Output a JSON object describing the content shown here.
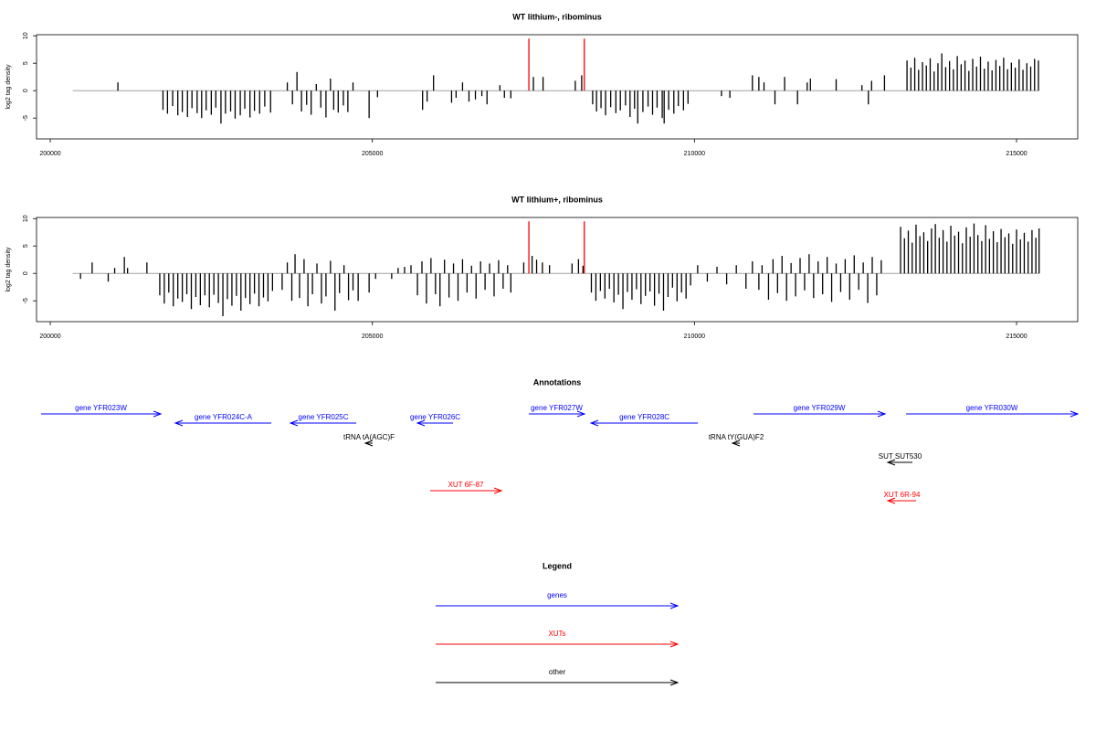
{
  "chart_data": [
    {
      "type": "bar",
      "title": "WT lithium-, ribominus",
      "ylabel": "log2 tag density",
      "xlim": [
        199787,
        215950
      ],
      "ylim": [
        -8.8,
        10.2
      ],
      "xticks": [
        200000,
        205000,
        210000,
        215000
      ],
      "yticks": [
        -5,
        0,
        5,
        10
      ],
      "region": [
        200350,
        215350
      ],
      "color": "#000000",
      "baseline_color": "#a0a0a0",
      "x": [
        201050,
        201750,
        201820,
        201900,
        201980,
        202050,
        202130,
        202200,
        202280,
        202350,
        202420,
        202500,
        202570,
        202650,
        202720,
        202800,
        202870,
        202950,
        203020,
        203100,
        203170,
        203250,
        203330,
        203420,
        203680,
        203760,
        203830,
        203900,
        203980,
        204050,
        204130,
        204200,
        204280,
        204350,
        204400,
        204470,
        204550,
        204620,
        204700,
        204950,
        205080,
        205780,
        205850,
        205950,
        206230,
        206300,
        206400,
        206500,
        206600,
        206700,
        206780,
        206980,
        207050,
        207150,
        207500,
        207650,
        208150,
        208250,
        208420,
        208480,
        208550,
        208620,
        208700,
        208780,
        208850,
        208930,
        209000,
        209070,
        209120,
        209200,
        209280,
        209350,
        209420,
        209500,
        209530,
        209600,
        209680,
        209750,
        209830,
        209900,
        210420,
        210550,
        210900,
        211000,
        211080,
        211250,
        211400,
        211600,
        211750,
        211800,
        212200,
        212600,
        212700,
        212750,
        212950,
        213300,
        213360,
        213420,
        213480,
        213540,
        213600,
        213660,
        213720,
        213780,
        213840,
        213900,
        213960,
        214020,
        214080,
        214140,
        214200,
        214260,
        214320,
        214380,
        214440,
        214500,
        214560,
        214620,
        214680,
        214740,
        214800,
        214860,
        214920,
        214980,
        215040,
        215100,
        215160,
        215220,
        215280,
        215340
      ],
      "values": [
        1.5,
        -3.5,
        -4.2,
        -2.8,
        -4.5,
        -3.9,
        -4.8,
        -3.2,
        -4.1,
        -5,
        -3.6,
        -4.4,
        -3.1,
        -6,
        -4.2,
        -3.8,
        -5.1,
        -4.5,
        -3.3,
        -4.9,
        -3.7,
        -4.2,
        -2.9,
        -4.0,
        1.5,
        -2.5,
        3.4,
        -3.8,
        -2.6,
        -4.4,
        1.2,
        -3.1,
        -4.9,
        2.2,
        -3.5,
        -4.0,
        -2.7,
        -3.9,
        1.5,
        -5,
        -1.2,
        -3.5,
        -2,
        2.8,
        -2.2,
        -1.3,
        1.5,
        -2,
        -1.6,
        -1,
        -2.5,
        1.0,
        -1.3,
        -1.4,
        2.5,
        2.5,
        1.8,
        2.8,
        -2.5,
        -3.8,
        -3.2,
        -4.5,
        -3.0,
        -4.1,
        -3.6,
        -2.7,
        -4.8,
        -3.3,
        -6,
        -3.9,
        -2.9,
        -4.4,
        -3.1,
        -5.0,
        -6.0,
        -3.5,
        -4.2,
        -2.8,
        -3.6,
        -2.4,
        -1,
        -1.3,
        2.8,
        2.5,
        1.5,
        -2.5,
        2.5,
        -2.5,
        1.5,
        2.2,
        2.1,
        1.0,
        -2.5,
        1.8,
        2.8,
        5.5,
        4.2,
        6.0,
        3.8,
        5.2,
        4.6,
        5.9,
        3.5,
        5.0,
        6.8,
        4.3,
        5.4,
        3.9,
        6.3,
        4.8,
        5.5,
        3.6,
        5.8,
        4.4,
        6.2,
        4.0,
        5.3,
        3.7,
        5.6,
        4.5,
        6.0,
        3.9,
        5.1,
        4.2,
        5.7,
        3.8,
        5.0,
        4.4,
        5.8,
        5.5
      ],
      "highlight": {
        "color": "#ff0000",
        "x": [
          207430,
          208290
        ],
        "values": [
          9.5,
          9.5
        ]
      }
    },
    {
      "type": "bar",
      "title": "WT lithium+, ribominus",
      "ylabel": "log2 tag density",
      "xlim": [
        199787,
        215950
      ],
      "ylim": [
        -8.8,
        10.2
      ],
      "xticks": [
        200000,
        205000,
        210000,
        215000
      ],
      "yticks": [
        -5,
        0,
        5,
        10
      ],
      "region": [
        200350,
        215350
      ],
      "color": "#000000",
      "baseline_color": "#a0a0a0",
      "x": [
        200470,
        200650,
        200900,
        201000,
        201150,
        201200,
        201500,
        201700,
        201770,
        201840,
        201910,
        201980,
        202050,
        202120,
        202190,
        202260,
        202330,
        202400,
        202470,
        202540,
        202610,
        202680,
        202750,
        202820,
        202890,
        202960,
        203030,
        203100,
        203170,
        203240,
        203310,
        203380,
        203450,
        203600,
        203680,
        203750,
        203800,
        203870,
        203940,
        204000,
        204070,
        204140,
        204210,
        204280,
        204350,
        204420,
        204490,
        204560,
        204630,
        204700,
        204780,
        204950,
        205050,
        205300,
        205400,
        205500,
        205600,
        205700,
        205770,
        205840,
        205910,
        205980,
        206050,
        206120,
        206190,
        206260,
        206330,
        206400,
        206470,
        206540,
        206610,
        206680,
        206750,
        206820,
        206890,
        206960,
        207030,
        207100,
        207150,
        207350,
        207480,
        207550,
        207640,
        207750,
        208100,
        208200,
        208270,
        208400,
        208470,
        208540,
        208610,
        208680,
        208750,
        208820,
        208890,
        208960,
        209030,
        209100,
        209170,
        209240,
        209310,
        209380,
        209450,
        209520,
        209590,
        209660,
        209730,
        209800,
        209870,
        209940,
        210050,
        210200,
        210350,
        210500,
        210650,
        210800,
        210900,
        211000,
        211050,
        211150,
        211220,
        211290,
        211360,
        211430,
        211500,
        211570,
        211640,
        211710,
        211780,
        211850,
        211920,
        211990,
        212060,
        212130,
        212200,
        212270,
        212340,
        212410,
        212480,
        212550,
        212620,
        212690,
        212760,
        212830,
        212900,
        213200,
        213260,
        213320,
        213380,
        213440,
        213500,
        213560,
        213620,
        213680,
        213740,
        213800,
        213860,
        213920,
        213980,
        214040,
        214100,
        214160,
        214220,
        214280,
        214340,
        214400,
        214460,
        214520,
        214580,
        214640,
        214700,
        214760,
        214820,
        214880,
        214940,
        215000,
        215060,
        215120,
        215180,
        215240,
        215300,
        215350
      ],
      "values": [
        -1,
        2,
        -1.5,
        1,
        3,
        1,
        2,
        -4,
        -5.5,
        -3.5,
        -6,
        -4.6,
        -5.2,
        -3.8,
        -6.5,
        -4.3,
        -5.8,
        -4.0,
        -6.2,
        -3.9,
        -5.4,
        -7.8,
        -4.7,
        -5.9,
        -4.1,
        -6.8,
        -4.5,
        -5.6,
        -3.7,
        -6.0,
        -4.4,
        -5.1,
        -3.2,
        -3,
        2,
        -5,
        3.5,
        -4.5,
        2.6,
        -6,
        -3.8,
        1.8,
        -5.5,
        -4.2,
        2.3,
        -6.8,
        -3.6,
        1.5,
        -4.9,
        -3.1,
        -5,
        -3.5,
        -1,
        -1,
        1,
        1.2,
        1.5,
        -4,
        2.2,
        -5.5,
        2.8,
        -3.8,
        -6,
        2.5,
        -4.4,
        1.8,
        -5.0,
        2.6,
        -3.5,
        1.4,
        -4.6,
        2.2,
        -3.0,
        1.8,
        -4.2,
        2.4,
        -2.8,
        1.5,
        -3.5,
        2,
        3.2,
        2.5,
        2,
        1.5,
        1.8,
        2.6,
        1.4,
        -3.5,
        -5,
        -3.2,
        -4.6,
        -2.8,
        -5.3,
        -3.9,
        -6.5,
        -3.4,
        -4.8,
        -2.9,
        -5.6,
        -4.1,
        -3.3,
        -5.9,
        -3.7,
        -6.8,
        -4.3,
        -2.6,
        -5.1,
        -3.5,
        -4.6,
        -2.2,
        1.5,
        -1.5,
        1.2,
        -2,
        1.5,
        -2.8,
        2.2,
        -3,
        1.5,
        -4.8,
        2.6,
        -3.6,
        3.2,
        -5,
        1.9,
        -4.2,
        2.8,
        -3.1,
        3.5,
        -4.5,
        2.2,
        -3.8,
        3.0,
        -5.2,
        1.8,
        -3.4,
        2.6,
        -4.8,
        3.3,
        -3.0,
        2.0,
        -5.4,
        3.0,
        -4.0,
        2.4,
        8.5,
        6.4,
        7.8,
        5.6,
        8.9,
        6.8,
        7.5,
        5.9,
        8.2,
        9.0,
        6.5,
        7.9,
        5.8,
        8.7,
        6.9,
        7.6,
        5.5,
        8.4,
        6.7,
        9.1,
        7.0,
        5.9,
        8.8,
        6.3,
        7.7,
        5.7,
        8.1,
        6.6,
        7.3,
        5.4,
        8.0,
        6.2,
        7.4,
        5.8,
        7.9,
        6.5,
        8.2
      ],
      "highlight": {
        "color": "#ff0000",
        "x": [
          207430,
          208290
        ],
        "values": [
          9.5,
          9.5
        ]
      }
    }
  ],
  "annotations": {
    "title": "Annotations",
    "xlim": [
      199787,
      215950
    ],
    "features": [
      {
        "label": "gene YFR023W",
        "kind": "gene",
        "strand": "+",
        "start": 199858,
        "end": 201716,
        "color": "#0000ff"
      },
      {
        "label": "gene YFR024C-A",
        "kind": "gene",
        "strand": "-",
        "start": 201942,
        "end": 203431,
        "color": "#0000ff"
      },
      {
        "label": "gene YFR025C",
        "kind": "gene",
        "strand": "-",
        "start": 203729,
        "end": 204750,
        "color": "#0000ff"
      },
      {
        "label": "gene YFR026C",
        "kind": "gene",
        "strand": "-",
        "start": 205700,
        "end": 206253,
        "color": "#0000ff"
      },
      {
        "label": "gene YFR027W",
        "kind": "gene",
        "strand": "+",
        "start": 207429,
        "end": 208294,
        "color": "#0000ff"
      },
      {
        "label": "gene YFR028C",
        "kind": "gene",
        "strand": "-",
        "start": 208394,
        "end": 210053,
        "color": "#0000ff"
      },
      {
        "label": "gene YFR029W",
        "kind": "gene",
        "strand": "+",
        "start": 210917,
        "end": 212959,
        "color": "#0000ff"
      },
      {
        "label": "gene YFR030W",
        "kind": "gene",
        "strand": "+",
        "start": 213285,
        "end": 215950,
        "color": "#0000ff"
      },
      {
        "label": "tRNA tA(AGC)F",
        "kind": "tRNA",
        "strand": "-",
        "start": 204891,
        "end": 205005,
        "color": "#000000"
      },
      {
        "label": "tRNA tY(GUA)F2",
        "kind": "tRNA",
        "strand": "-",
        "start": 210591,
        "end": 210705,
        "color": "#000000"
      },
      {
        "label": "SUT SUT530",
        "kind": "SUT",
        "strand": "-",
        "start": 213001,
        "end": 213384,
        "color": "#000000"
      },
      {
        "label": "XUT 6F-87",
        "kind": "XUT",
        "strand": "+",
        "start": 205898,
        "end": 207004,
        "color": "#ff0000"
      },
      {
        "label": "XUT 6R-94",
        "kind": "XUT",
        "strand": "-",
        "start": 213001,
        "end": 213441,
        "color": "#ff0000"
      }
    ]
  },
  "legend": {
    "title": "Legend",
    "entries": [
      {
        "label": "genes",
        "color": "#0000ff"
      },
      {
        "label": "XUTs",
        "color": "#ff0000"
      },
      {
        "label": "other",
        "color": "#000000"
      }
    ]
  }
}
